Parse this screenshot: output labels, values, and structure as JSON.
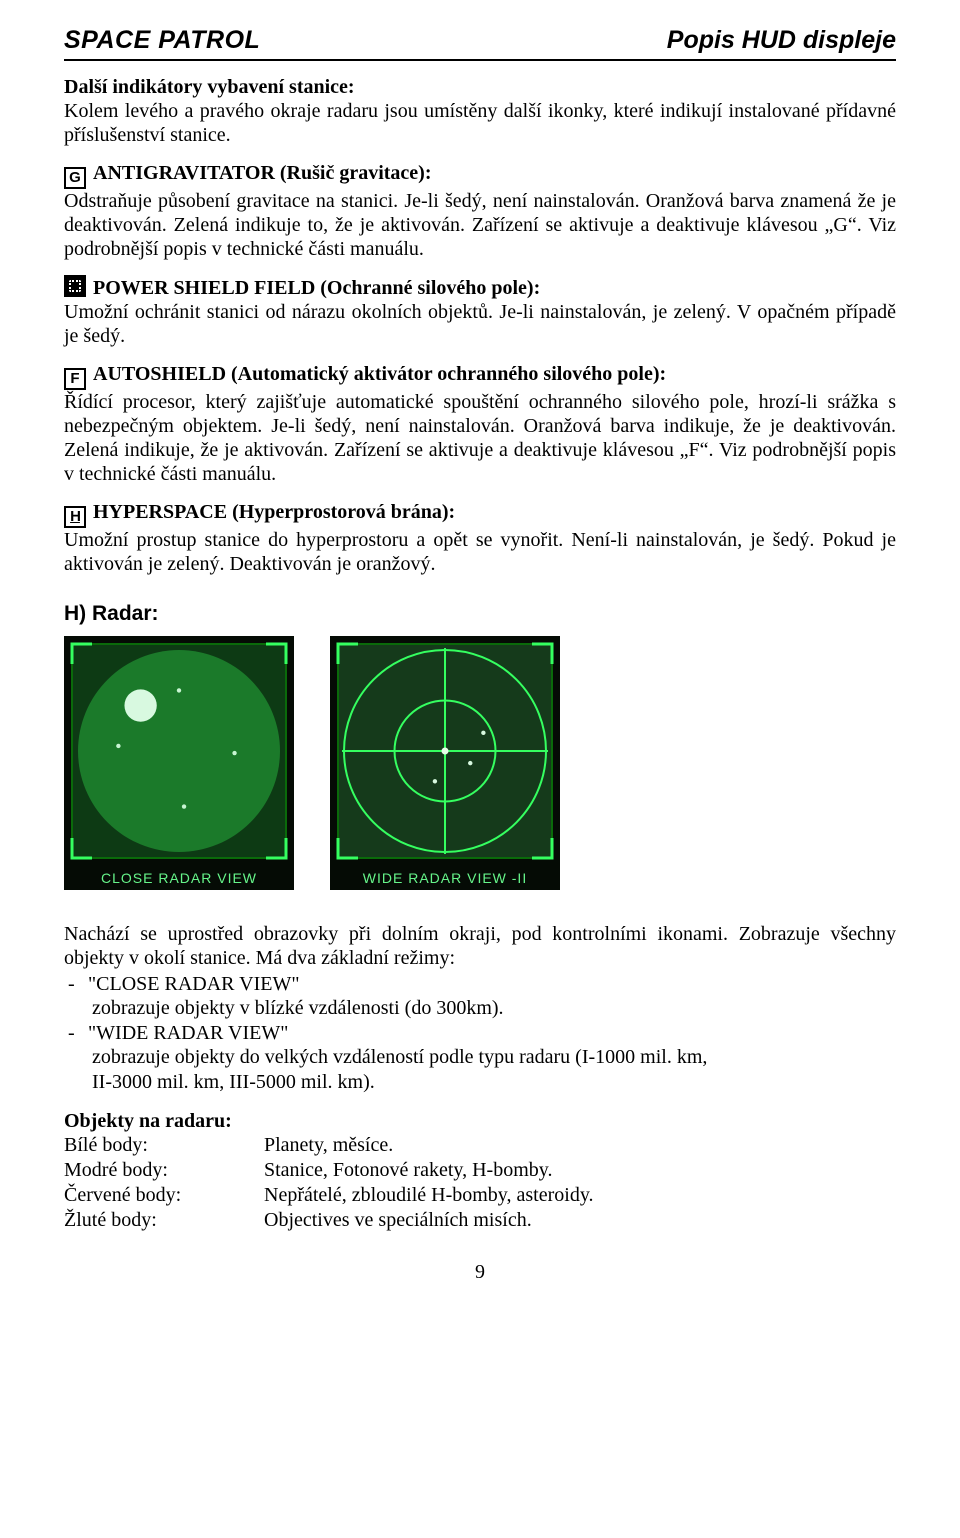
{
  "header": {
    "left": "SPACE PATROL",
    "right": "Popis HUD displeje"
  },
  "s1": {
    "title": "Další indikátory vybavení stanice:",
    "body": "Kolem levého a pravého okraje radaru jsou umístěny další ikonky, které indikují instalované přídavné příslušenství stanice."
  },
  "g": {
    "glyph": "G",
    "title": "ANTIGRAVITATOR (Rušič gravitace):",
    "body": "Odstraňuje působení gravitace na stanici. Je-li šedý, není nainstalován. Oranžová barva znamená že je deaktivován. Zelená indikuje to, že je aktivován. Zařízení se aktivuje a deaktivuje klávesou „G“. Viz podrobnější popis v technické části manuálu."
  },
  "shield": {
    "title": "POWER SHIELD FIELD (Ochranné silového pole):",
    "body": "Umožní ochránit stanici od nárazu okolních objektů. Je-li nainstalován, je zelený. V opačném případě je šedý."
  },
  "f": {
    "glyph": "F",
    "title": "AUTOSHIELD  (Automatický aktivátor ochranného silového pole):",
    "body": "Řídící procesor, který zajišťuje automatické spouštění ochranného silového pole, hrozí-li srážka s nebezpečným objektem. Je-li šedý, není nainstalován. Oranžová barva indikuje, že je deaktivován. Zelená indikuje, že je aktivován. Zařízení se aktivuje a deaktivuje klávesou „F“. Viz podrobnější popis v technické části manuálu."
  },
  "h": {
    "glyph": "H",
    "title": "HYPERSPACE  (Hyperprostorová brána):",
    "body": "Umožní prostup stanice do hyperprostoru a opět se vynořit. Není-li nainstalován, je šedý. Pokud je aktivován je zelený. Deaktivován je oranžový."
  },
  "radar": {
    "heading": "H) Radar:",
    "img1_caption": "CLOSE RADAR VIEW",
    "img2_caption": "WIDE RADAR VIEW -II",
    "intro": "Nachází se uprostřed obrazovky při dolním okraji, pod kontrolními ikonami. Zobrazuje všechny objekty v okolí stanice. Má dva základní režimy:",
    "m1_name": "\"CLOSE RADAR VIEW\"",
    "m1_desc": "zobrazuje objekty v blízké vzdálenosti (do 300km).",
    "m2_name": "\"WIDE RADAR VIEW\"",
    "m2_desc1": "zobrazuje objekty do velkých vzdáleností podle typu radaru (I-1000 mil. km,",
    "m2_desc2": "II-3000 mil. km, III-5000 mil. km)."
  },
  "objects": {
    "title": "Objekty na radaru:",
    "rows": [
      {
        "k": "Bílé body:",
        "v": "Planety, měsíce."
      },
      {
        "k": "Modré body:",
        "v": "Stanice, Fotonové rakety, H-bomby."
      },
      {
        "k": "Červené body:",
        "v": "Nepřátelé, zbloudilé H-bomby, asteroidy."
      },
      {
        "k": "Žluté body:",
        "v": "Objectives ve speciálních misích."
      }
    ]
  },
  "page_number": "9",
  "figure": {
    "box_stroke": "#0a6a0a",
    "box_fill_a": "#0d3a14",
    "box_fill_b": "#153a1b",
    "scope_fill": "#1b7a2a",
    "scope_fill2": "#2a8a38",
    "line": "#35ff60",
    "label_color": "#66f58a",
    "bg": "#050b05",
    "size": 230
  }
}
